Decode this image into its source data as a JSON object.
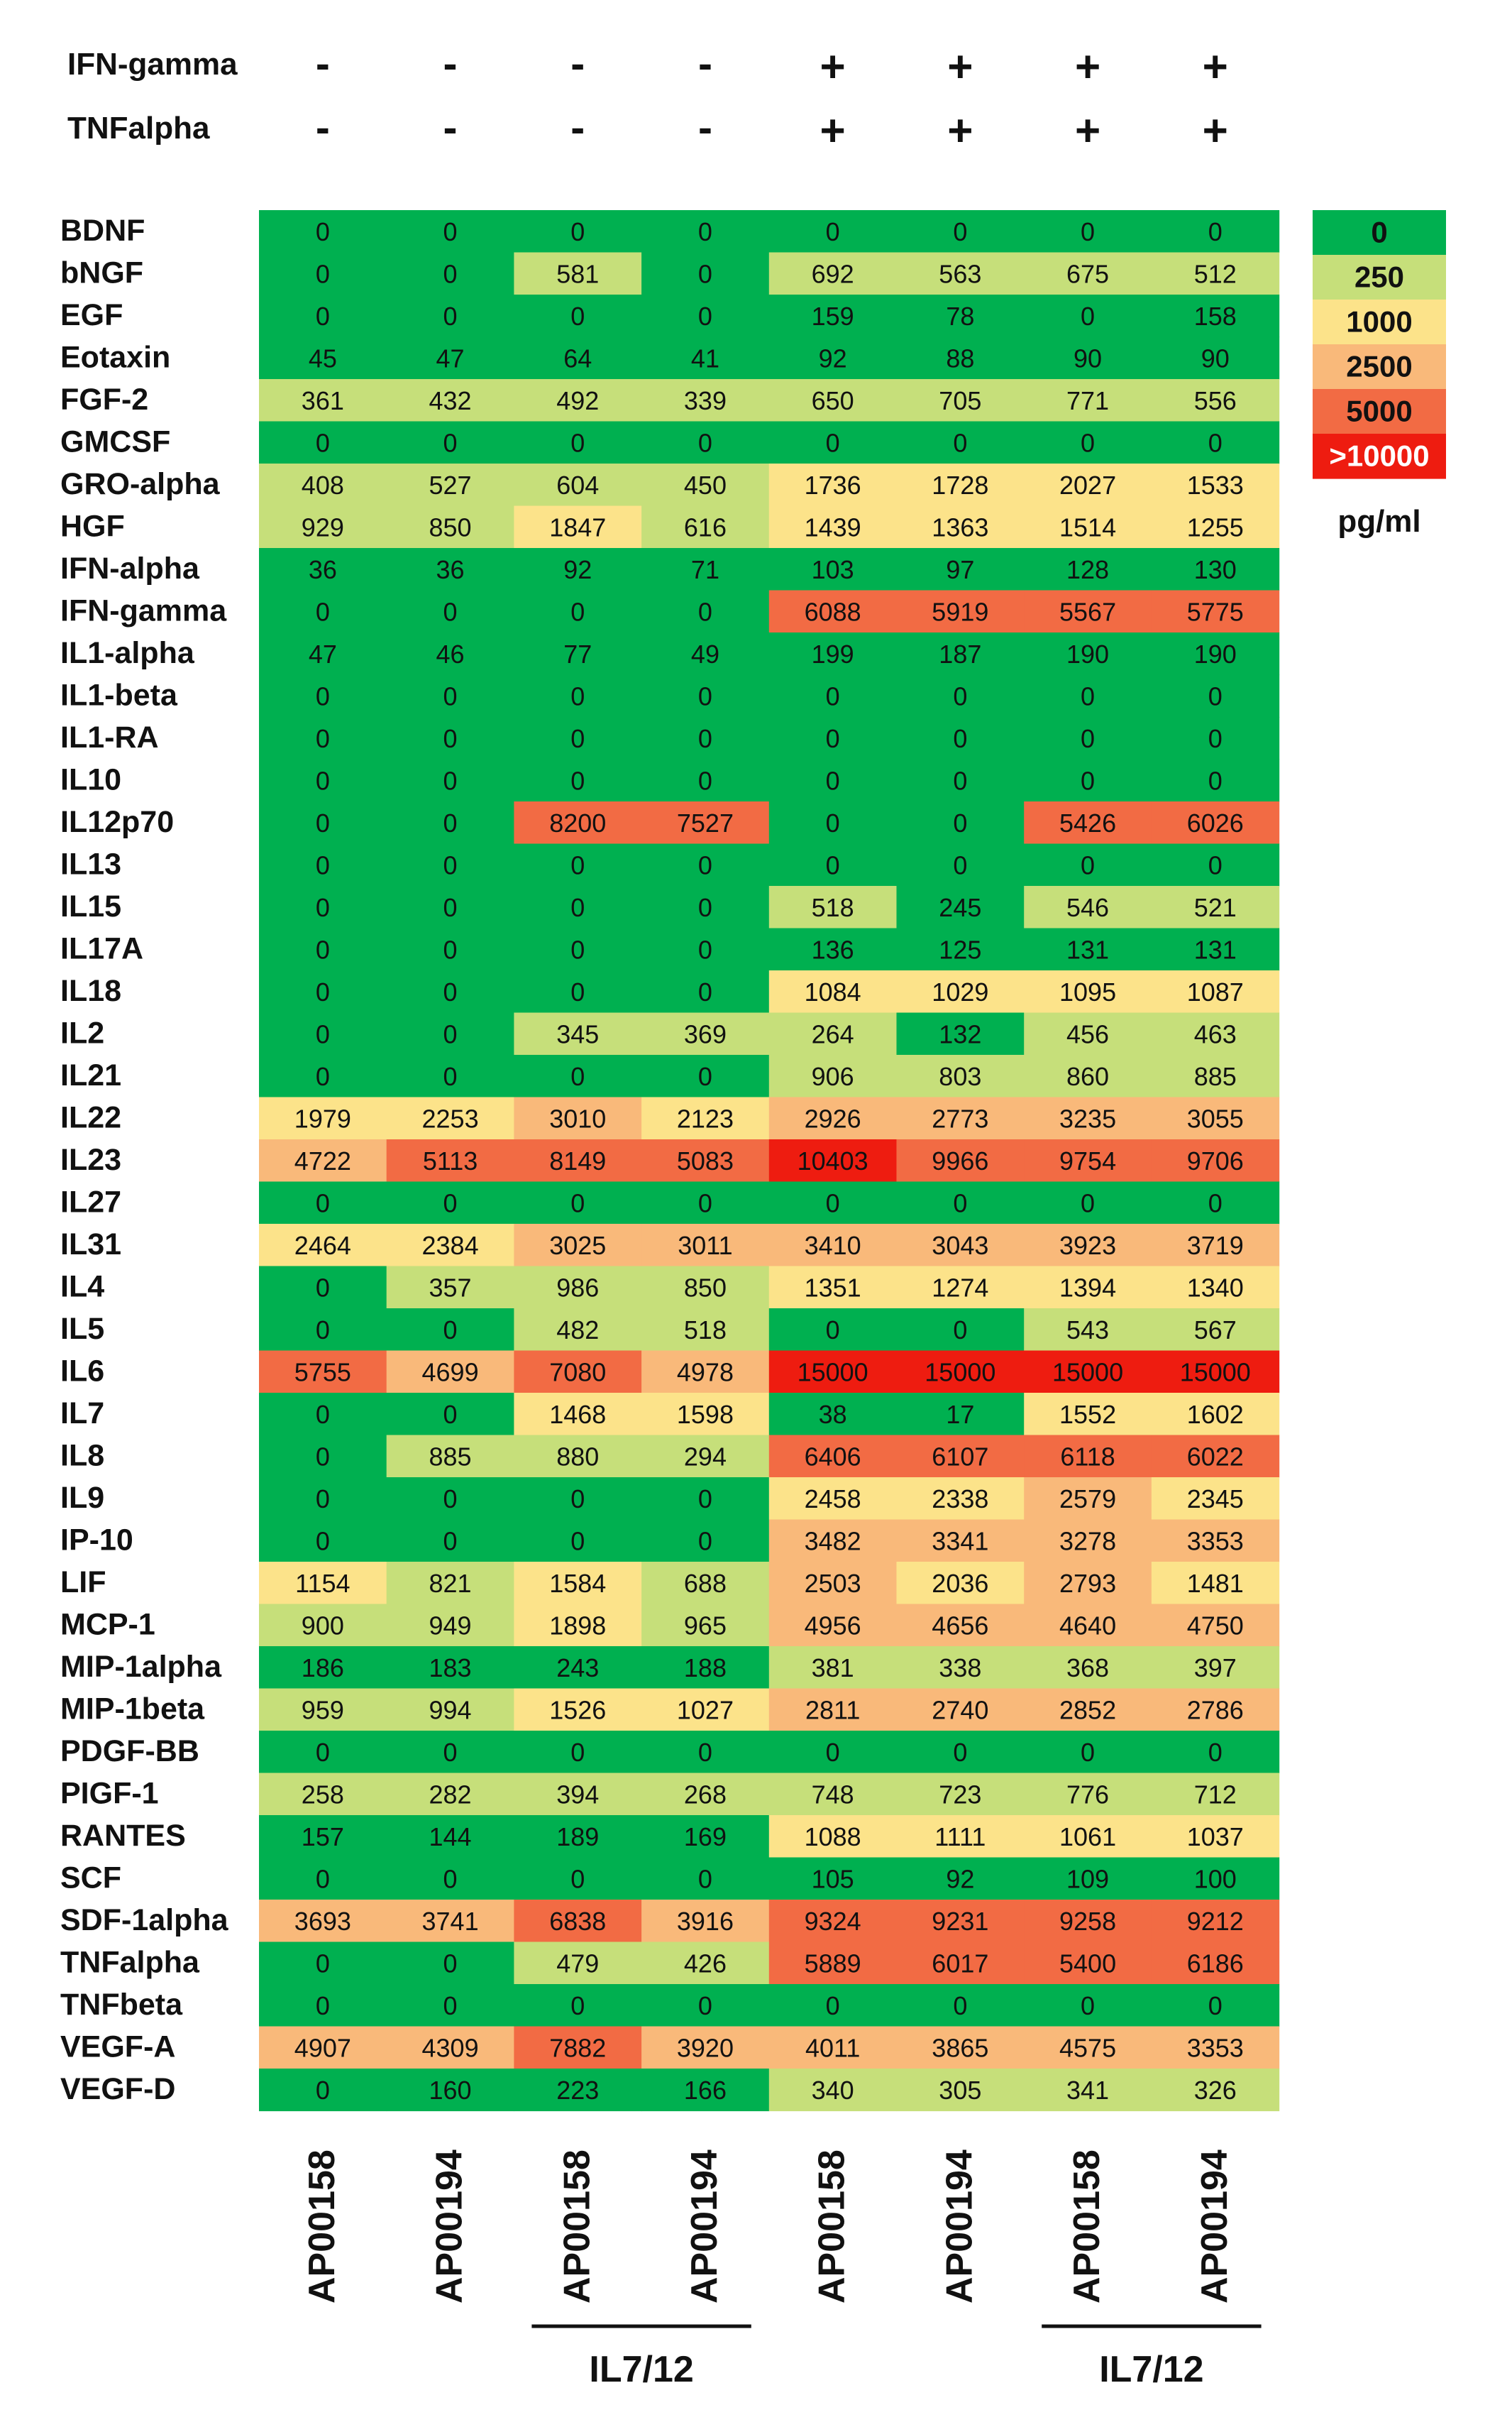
{
  "chart_data": {
    "type": "heatmap",
    "title": "",
    "treatments": [
      {
        "label": "IFN-gamma",
        "values": [
          "-",
          "-",
          "-",
          "-",
          "+",
          "+",
          "+",
          "+"
        ]
      },
      {
        "label": "TNFalpha",
        "values": [
          "-",
          "-",
          "-",
          "-",
          "+",
          "+",
          "+",
          "+"
        ]
      }
    ],
    "columns": [
      "AP00158",
      "AP00194",
      "AP00158",
      "AP00194",
      "AP00158",
      "AP00194",
      "AP00158",
      "AP00194"
    ],
    "column_groups": [
      {
        "label": "IL7/12",
        "start": 2,
        "end": 3
      },
      {
        "label": "IL7/12",
        "start": 6,
        "end": 7
      }
    ],
    "rows": [
      "BDNF",
      "bNGF",
      "EGF",
      "Eotaxin",
      "FGF-2",
      "GMCSF",
      "GRO-alpha",
      "HGF",
      "IFN-alpha",
      "IFN-gamma",
      "IL1-alpha",
      "IL1-beta",
      "IL1-RA",
      "IL10",
      "IL12p70",
      "IL13",
      "IL15",
      "IL17A",
      "IL18",
      "IL2",
      "IL21",
      "IL22",
      "IL23",
      "IL27",
      "IL31",
      "IL4",
      "IL5",
      "IL6",
      "IL7",
      "IL8",
      "IL9",
      "IP-10",
      "LIF",
      "MCP-1",
      "MIP-1alpha",
      "MIP-1beta",
      "PDGF-BB",
      "PIGF-1",
      "RANTES",
      "SCF",
      "SDF-1alpha",
      "TNFalpha",
      "TNFbeta",
      "VEGF-A",
      "VEGF-D"
    ],
    "values": [
      [
        0,
        0,
        0,
        0,
        0,
        0,
        0,
        0
      ],
      [
        0,
        0,
        581,
        0,
        692,
        563,
        675,
        512
      ],
      [
        0,
        0,
        0,
        0,
        159,
        78,
        0,
        158
      ],
      [
        45,
        47,
        64,
        41,
        92,
        88,
        90,
        90
      ],
      [
        361,
        432,
        492,
        339,
        650,
        705,
        771,
        556
      ],
      [
        0,
        0,
        0,
        0,
        0,
        0,
        0,
        0
      ],
      [
        408,
        527,
        604,
        450,
        1736,
        1728,
        2027,
        1533
      ],
      [
        929,
        850,
        1847,
        616,
        1439,
        1363,
        1514,
        1255
      ],
      [
        36,
        36,
        92,
        71,
        103,
        97,
        128,
        130
      ],
      [
        0,
        0,
        0,
        0,
        6088,
        5919,
        5567,
        5775
      ],
      [
        47,
        46,
        77,
        49,
        199,
        187,
        190,
        190
      ],
      [
        0,
        0,
        0,
        0,
        0,
        0,
        0,
        0
      ],
      [
        0,
        0,
        0,
        0,
        0,
        0,
        0,
        0
      ],
      [
        0,
        0,
        0,
        0,
        0,
        0,
        0,
        0
      ],
      [
        0,
        0,
        8200,
        7527,
        0,
        0,
        5426,
        6026
      ],
      [
        0,
        0,
        0,
        0,
        0,
        0,
        0,
        0
      ],
      [
        0,
        0,
        0,
        0,
        518,
        245,
        546,
        521
      ],
      [
        0,
        0,
        0,
        0,
        136,
        125,
        131,
        131
      ],
      [
        0,
        0,
        0,
        0,
        1084,
        1029,
        1095,
        1087
      ],
      [
        0,
        0,
        345,
        369,
        264,
        132,
        456,
        463
      ],
      [
        0,
        0,
        0,
        0,
        906,
        803,
        860,
        885
      ],
      [
        1979,
        2253,
        3010,
        2123,
        2926,
        2773,
        3235,
        3055
      ],
      [
        4722,
        5113,
        8149,
        5083,
        10403,
        9966,
        9754,
        9706
      ],
      [
        0,
        0,
        0,
        0,
        0,
        0,
        0,
        0
      ],
      [
        2464,
        2384,
        3025,
        3011,
        3410,
        3043,
        3923,
        3719
      ],
      [
        0,
        357,
        986,
        850,
        1351,
        1274,
        1394,
        1340
      ],
      [
        0,
        0,
        482,
        518,
        0,
        0,
        543,
        567
      ],
      [
        5755,
        4699,
        7080,
        4978,
        15000,
        15000,
        15000,
        15000
      ],
      [
        0,
        0,
        1468,
        1598,
        38,
        17,
        1552,
        1602
      ],
      [
        0,
        885,
        880,
        294,
        6406,
        6107,
        6118,
        6022
      ],
      [
        0,
        0,
        0,
        0,
        2458,
        2338,
        2579,
        2345
      ],
      [
        0,
        0,
        0,
        0,
        3482,
        3341,
        3278,
        3353
      ],
      [
        1154,
        821,
        1584,
        688,
        2503,
        2036,
        2793,
        1481
      ],
      [
        900,
        949,
        1898,
        965,
        4956,
        4656,
        4640,
        4750
      ],
      [
        186,
        183,
        243,
        188,
        381,
        338,
        368,
        397
      ],
      [
        959,
        994,
        1526,
        1027,
        2811,
        2740,
        2852,
        2786
      ],
      [
        0,
        0,
        0,
        0,
        0,
        0,
        0,
        0
      ],
      [
        258,
        282,
        394,
        268,
        748,
        723,
        776,
        712
      ],
      [
        157,
        144,
        189,
        169,
        1088,
        1111,
        1061,
        1037
      ],
      [
        0,
        0,
        0,
        0,
        105,
        92,
        109,
        100
      ],
      [
        3693,
        3741,
        6838,
        3916,
        9324,
        9231,
        9258,
        9212
      ],
      [
        0,
        0,
        479,
        426,
        5889,
        6017,
        5400,
        6186
      ],
      [
        0,
        0,
        0,
        0,
        0,
        0,
        0,
        0
      ],
      [
        4907,
        4309,
        7882,
        3920,
        4011,
        3865,
        4575,
        3353
      ],
      [
        0,
        160,
        223,
        166,
        340,
        305,
        341,
        326
      ]
    ],
    "legend": {
      "labels": [
        "0",
        "250",
        "1000",
        "2500",
        "5000",
        ">10000"
      ],
      "thresholds": [
        0,
        250,
        1000,
        2500,
        5000,
        10000
      ],
      "colors": [
        "#00b050",
        "#c6df7a",
        "#fce38a",
        "#f9b97a",
        "#f26b44",
        "#ee1c10"
      ],
      "unit": "pg/ml",
      "placement": "top-right"
    }
  }
}
